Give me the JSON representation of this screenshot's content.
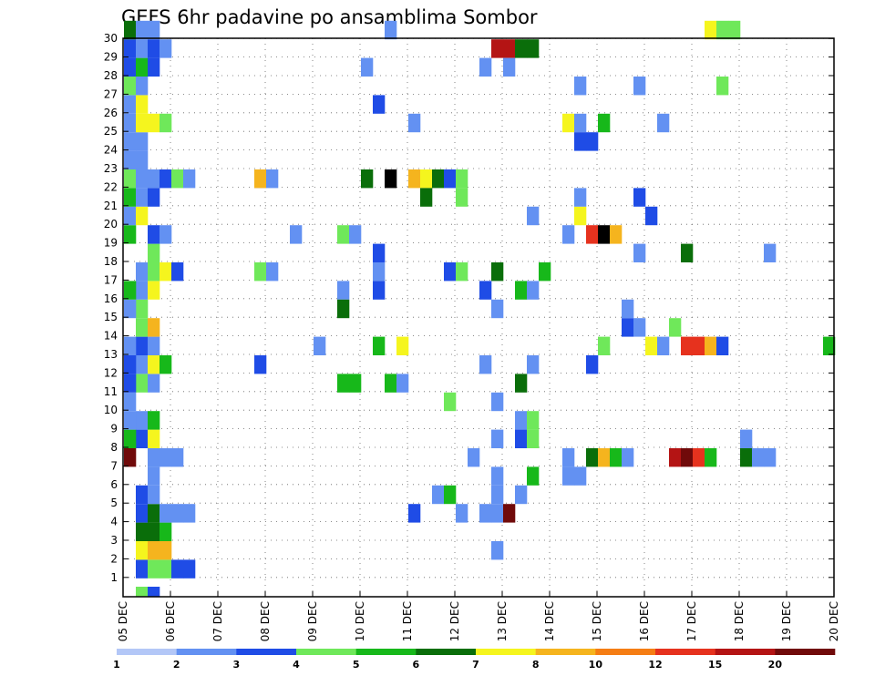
{
  "chart_data": {
    "type": "heatmap",
    "title": "GEFS 6hr padavine po ansamblima Sombor",
    "xlabel": "",
    "ylabel": "",
    "x_tick_labels": [
      "05 DEC",
      "06 DEC",
      "07 DEC",
      "08 DEC",
      "09 DEC",
      "10 DEC",
      "11 DEC",
      "12 DEC",
      "13 DEC",
      "14 DEC",
      "15 DEC",
      "16 DEC",
      "17 DEC",
      "18 DEC",
      "19 DEC",
      "20 DEC"
    ],
    "y_tick_labels": [
      "1",
      "2",
      "3",
      "4",
      "5",
      "6",
      "7",
      "8",
      "9",
      "10",
      "11",
      "12",
      "13",
      "14",
      "15",
      "16",
      "17",
      "18",
      "19",
      "20",
      "21",
      "22",
      "23",
      "24",
      "25",
      "26",
      "27",
      "28",
      "29",
      "30"
    ],
    "x_range_steps": [
      0,
      60
    ],
    "y_range_members": [
      0,
      30
    ],
    "time_step_hours": 6,
    "grid": "dotted",
    "colorbar": {
      "labels": [
        "1",
        "2",
        "3",
        "4",
        "5",
        "6",
        "7",
        "8",
        "10",
        "12",
        "15",
        "20"
      ],
      "colors": [
        "#b3c7f7",
        "#6391f2",
        "#1f4ce6",
        "#6fe85a",
        "#17b81a",
        "#0a6e0a",
        "#f5f51e",
        "#f5b41e",
        "#f57d14",
        "#e6321e",
        "#b41414",
        "#700a0a"
      ]
    },
    "cells": [
      [
        1,
        -1,
        3
      ],
      [
        1,
        0,
        2
      ],
      [
        1,
        1,
        6
      ],
      [
        1,
        2,
        5
      ],
      [
        1,
        3,
        2
      ],
      [
        1,
        4,
        2
      ],
      [
        1,
        7,
        2
      ],
      [
        1,
        8,
        1
      ],
      [
        1,
        10,
        3
      ],
      [
        1,
        11,
        1
      ],
      [
        1,
        12,
        2
      ],
      [
        1,
        13,
        3
      ],
      [
        1,
        14,
        3
      ],
      [
        1,
        15,
        1
      ],
      [
        0,
        6,
        11
      ],
      [
        0,
        7,
        4
      ],
      [
        0,
        8,
        1
      ],
      [
        0,
        9,
        1
      ],
      [
        0,
        10,
        2
      ],
      [
        0,
        11,
        2
      ],
      [
        0,
        12,
        1
      ],
      [
        0,
        14,
        1
      ],
      [
        0,
        15,
        4
      ],
      [
        0,
        18,
        4
      ],
      [
        0,
        19,
        1
      ],
      [
        0,
        20,
        4
      ],
      [
        0,
        21,
        3
      ],
      [
        0,
        22,
        1
      ],
      [
        0,
        23,
        1
      ],
      [
        0,
        24,
        1
      ],
      [
        0,
        25,
        1
      ],
      [
        0,
        26,
        3
      ],
      [
        0,
        27,
        2
      ],
      [
        0,
        28,
        2
      ],
      [
        0,
        29,
        5
      ],
      [
        1,
        16,
        1
      ],
      [
        1,
        19,
        6
      ],
      [
        1,
        20,
        1
      ],
      [
        1,
        21,
        1
      ],
      [
        1,
        22,
        1
      ],
      [
        1,
        23,
        1
      ],
      [
        1,
        24,
        6
      ],
      [
        1,
        25,
        6
      ],
      [
        1,
        26,
        1
      ],
      [
        1,
        27,
        4
      ],
      [
        1,
        28,
        1
      ],
      [
        1,
        29,
        1
      ],
      [
        2,
        -1,
        2
      ],
      [
        2,
        0,
        3
      ],
      [
        2,
        1,
        7
      ],
      [
        2,
        2,
        5
      ],
      [
        2,
        3,
        5
      ],
      [
        2,
        4,
        1
      ],
      [
        2,
        5,
        1
      ],
      [
        2,
        6,
        1
      ],
      [
        2,
        7,
        6
      ],
      [
        2,
        8,
        4
      ],
      [
        2,
        10,
        1
      ],
      [
        2,
        11,
        6
      ],
      [
        2,
        12,
        1
      ],
      [
        2,
        13,
        7
      ],
      [
        2,
        15,
        6
      ],
      [
        2,
        16,
        3
      ],
      [
        2,
        17,
        3
      ],
      [
        2,
        18,
        2
      ],
      [
        2,
        20,
        2
      ],
      [
        2,
        21,
        1
      ],
      [
        2,
        24,
        6
      ],
      [
        2,
        27,
        2
      ],
      [
        2,
        28,
        2
      ],
      [
        2,
        29,
        1
      ],
      [
        3,
        0,
        3
      ],
      [
        3,
        1,
        7
      ],
      [
        3,
        2,
        4
      ],
      [
        3,
        3,
        1
      ],
      [
        3,
        6,
        1
      ],
      [
        3,
        11,
        4
      ],
      [
        3,
        16,
        6
      ],
      [
        3,
        18,
        1
      ],
      [
        3,
        21,
        2
      ],
      [
        3,
        24,
        3
      ],
      [
        3,
        28,
        1
      ],
      [
        4,
        0,
        2
      ],
      [
        4,
        3,
        1
      ],
      [
        4,
        6,
        1
      ],
      [
        4,
        16,
        2
      ],
      [
        4,
        21,
        3
      ],
      [
        5,
        0,
        2
      ],
      [
        5,
        3,
        1
      ],
      [
        5,
        21,
        1
      ],
      [
        11,
        11,
        2
      ],
      [
        11,
        16,
        3
      ],
      [
        11,
        21,
        1
      ],
      [
        11,
        21,
        7
      ],
      [
        12,
        16,
        1
      ],
      [
        12,
        21,
        1
      ],
      [
        14,
        18,
        1
      ],
      [
        16,
        12,
        1
      ],
      [
        18,
        15,
        1
      ],
      [
        18,
        10,
        4
      ],
      [
        18,
        14,
        5
      ],
      [
        18,
        18,
        3
      ],
      [
        19,
        10,
        4
      ],
      [
        19,
        18,
        1
      ],
      [
        20,
        21,
        5
      ],
      [
        20,
        27,
        1
      ],
      [
        21,
        15,
        2
      ],
      [
        21,
        16,
        1
      ],
      [
        21,
        17,
        2
      ],
      [
        21,
        12,
        4
      ],
      [
        21,
        25,
        2
      ],
      [
        22,
        10,
        4
      ],
      [
        22,
        21,
        12
      ],
      [
        22,
        29,
        1
      ],
      [
        23,
        10,
        1
      ],
      [
        23,
        12,
        6
      ],
      [
        24,
        21,
        7
      ],
      [
        24,
        3,
        2
      ],
      [
        24,
        24,
        1
      ],
      [
        25,
        21,
        6
      ],
      [
        25,
        20,
        5
      ],
      [
        26,
        21,
        5
      ],
      [
        26,
        4,
        1
      ],
      [
        27,
        21,
        2
      ],
      [
        27,
        16,
        2
      ],
      [
        27,
        9,
        3
      ],
      [
        27,
        4,
        4
      ],
      [
        28,
        21,
        3
      ],
      [
        28,
        16,
        3
      ],
      [
        28,
        20,
        3
      ],
      [
        28,
        3,
        1
      ],
      [
        29,
        6,
        1
      ],
      [
        30,
        15,
        2
      ],
      [
        30,
        3,
        1
      ],
      [
        30,
        11,
        1
      ],
      [
        30,
        27,
        1
      ],
      [
        31,
        7,
        1
      ],
      [
        31,
        16,
        5
      ],
      [
        31,
        4,
        1
      ],
      [
        31,
        9,
        1
      ],
      [
        31,
        28,
        10
      ],
      [
        31,
        1,
        1
      ],
      [
        31,
        14,
        1
      ],
      [
        31,
        5,
        1
      ],
      [
        31,
        3,
        1
      ],
      [
        32,
        28,
        10
      ],
      [
        32,
        3,
        11
      ],
      [
        32,
        27,
        1
      ],
      [
        33,
        15,
        4
      ],
      [
        33,
        8,
        1
      ],
      [
        33,
        7,
        2
      ],
      [
        33,
        28,
        5
      ],
      [
        33,
        10,
        5
      ],
      [
        33,
        4,
        1
      ],
      [
        34,
        28,
        5
      ],
      [
        34,
        7,
        3
      ],
      [
        34,
        8,
        3
      ],
      [
        34,
        5,
        4
      ],
      [
        34,
        19,
        1
      ],
      [
        34,
        11,
        1
      ],
      [
        34,
        15,
        1
      ],
      [
        35,
        16,
        4
      ],
      [
        37,
        24,
        6
      ],
      [
        37,
        18,
        1
      ],
      [
        37,
        5,
        1
      ],
      [
        37,
        6,
        1
      ],
      [
        38,
        24,
        1
      ],
      [
        38,
        19,
        6
      ],
      [
        38,
        5,
        1
      ],
      [
        38,
        23,
        2
      ],
      [
        38,
        26,
        1
      ],
      [
        38,
        20,
        1
      ],
      [
        39,
        18,
        9
      ],
      [
        39,
        11,
        2
      ],
      [
        39,
        6,
        5
      ],
      [
        39,
        23,
        2
      ],
      [
        40,
        18,
        12
      ],
      [
        40,
        12,
        3
      ],
      [
        40,
        6,
        7
      ],
      [
        40,
        24,
        4
      ],
      [
        41,
        18,
        7
      ],
      [
        41,
        6,
        4
      ],
      [
        42,
        13,
        2
      ],
      [
        42,
        6,
        1
      ],
      [
        42,
        14,
        1
      ],
      [
        43,
        26,
        1
      ],
      [
        43,
        17,
        1
      ],
      [
        43,
        13,
        1
      ],
      [
        43,
        20,
        2
      ],
      [
        44,
        19,
        2
      ],
      [
        44,
        12,
        6
      ],
      [
        45,
        12,
        1
      ],
      [
        45,
        24,
        1
      ],
      [
        46,
        13,
        3
      ],
      [
        46,
        6,
        10
      ],
      [
        47,
        17,
        5
      ],
      [
        47,
        12,
        9
      ],
      [
        47,
        6,
        11
      ],
      [
        48,
        12,
        9
      ],
      [
        48,
        6,
        9
      ],
      [
        49,
        12,
        7
      ],
      [
        49,
        6,
        4
      ],
      [
        49,
        29,
        6
      ],
      [
        50,
        12,
        2
      ],
      [
        50,
        29,
        3
      ],
      [
        50,
        26,
        3
      ],
      [
        51,
        29,
        3
      ],
      [
        52,
        6,
        5
      ],
      [
        52,
        7,
        1
      ],
      [
        53,
        6,
        1
      ],
      [
        54,
        6,
        1
      ],
      [
        54,
        17,
        1
      ],
      [
        59,
        12,
        4
      ]
    ]
  }
}
